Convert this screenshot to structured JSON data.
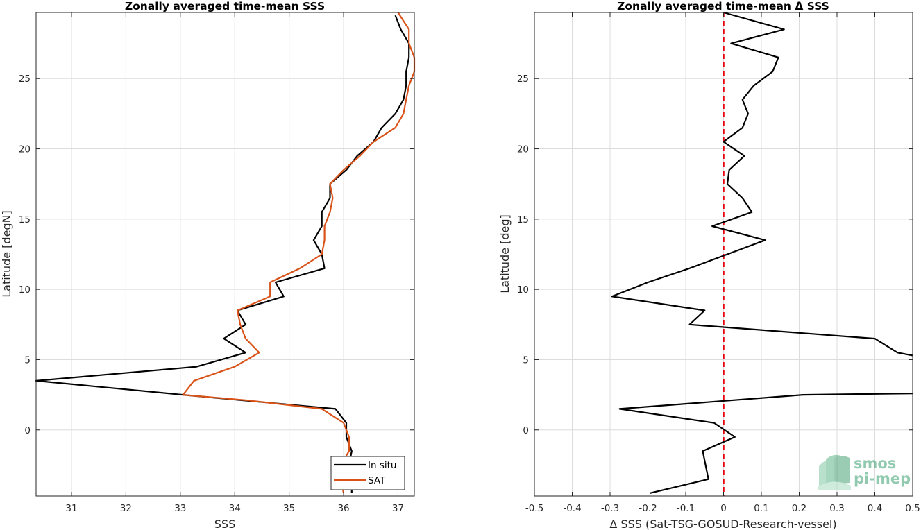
{
  "chart_data": [
    {
      "type": "line",
      "title": "Zonally averaged time-mean SSS",
      "xlabel": "SSS",
      "ylabel": "Latitude [degN]",
      "xlim": [
        30.35,
        37.3
      ],
      "ylim": [
        -4.7,
        29.7
      ],
      "xticks": [
        31,
        32,
        33,
        34,
        35,
        36,
        37
      ],
      "yticks": [
        0,
        5,
        10,
        15,
        20,
        25
      ],
      "grid": true,
      "legend_position": "bottom-right",
      "series": [
        {
          "name": "In situ",
          "color": "#000000",
          "points": [
            [
              36.15,
              -4.5
            ],
            [
              36.15,
              -3.5
            ],
            [
              36.1,
              -2.5
            ],
            [
              36.15,
              -1.5
            ],
            [
              36.05,
              -0.5
            ],
            [
              36.05,
              0.5
            ],
            [
              35.85,
              1.5
            ],
            [
              33.05,
              2.5
            ],
            [
              30.35,
              3.5
            ],
            [
              33.3,
              4.5
            ],
            [
              34.2,
              5.5
            ],
            [
              33.8,
              6.5
            ],
            [
              34.2,
              7.5
            ],
            [
              34.05,
              8.5
            ],
            [
              34.9,
              9.5
            ],
            [
              34.75,
              10.5
            ],
            [
              35.65,
              11.5
            ],
            [
              35.6,
              12.5
            ],
            [
              35.45,
              13.5
            ],
            [
              35.6,
              14.5
            ],
            [
              35.6,
              15.5
            ],
            [
              35.75,
              16.5
            ],
            [
              35.75,
              17.5
            ],
            [
              36.05,
              18.5
            ],
            [
              36.25,
              19.5
            ],
            [
              36.55,
              20.5
            ],
            [
              36.7,
              21.5
            ],
            [
              36.95,
              22.5
            ],
            [
              37.1,
              23.5
            ],
            [
              37.15,
              24.5
            ],
            [
              37.15,
              25.5
            ],
            [
              37.2,
              26.5
            ],
            [
              37.2,
              27.5
            ],
            [
              37.05,
              28.5
            ],
            [
              36.95,
              29.5
            ]
          ]
        },
        {
          "name": "SAT",
          "color": "#d95319",
          "points": [
            [
              36.0,
              -4.5
            ],
            [
              35.95,
              -3.5
            ],
            [
              35.95,
              -2.5
            ],
            [
              36.1,
              -1.5
            ],
            [
              36.1,
              -0.5
            ],
            [
              36.0,
              0.5
            ],
            [
              35.6,
              1.5
            ],
            [
              34.25,
              2.1
            ],
            [
              33.05,
              2.5
            ],
            [
              33.25,
              3.5
            ],
            [
              34.0,
              4.5
            ],
            [
              34.45,
              5.5
            ],
            [
              34.2,
              6.5
            ],
            [
              34.1,
              7.5
            ],
            [
              34.05,
              8.5
            ],
            [
              34.65,
              9.5
            ],
            [
              34.65,
              10.5
            ],
            [
              35.2,
              11.5
            ],
            [
              35.6,
              12.5
            ],
            [
              35.65,
              13.5
            ],
            [
              35.65,
              14.5
            ],
            [
              35.75,
              15.5
            ],
            [
              35.8,
              16.5
            ],
            [
              35.75,
              17.5
            ],
            [
              36.0,
              18.5
            ],
            [
              36.3,
              19.5
            ],
            [
              36.55,
              20.5
            ],
            [
              36.95,
              21.5
            ],
            [
              37.1,
              22.5
            ],
            [
              37.15,
              23.5
            ],
            [
              37.2,
              24.5
            ],
            [
              37.3,
              25.5
            ],
            [
              37.3,
              26.5
            ],
            [
              37.2,
              27.5
            ],
            [
              37.2,
              28.5
            ],
            [
              37.0,
              29.7
            ]
          ]
        }
      ]
    },
    {
      "type": "line",
      "title": "Zonally averaged time-mean Δ SSS",
      "xlabel": "Δ SSS (Sat-TSG-GOSUD-Research-vessel)",
      "ylabel": "Latitude [deg]",
      "xlim": [
        -0.5,
        0.5
      ],
      "ylim": [
        -4.7,
        29.7
      ],
      "xticks": [
        "-0.5",
        "-0.4",
        "-0.3",
        "-0.2",
        "-0.1",
        "0",
        "0.1",
        "0.2",
        "0.3",
        "0.4",
        "0.5"
      ],
      "xtick_values": [
        -0.5,
        -0.4,
        -0.3,
        -0.2,
        -0.1,
        0,
        0.1,
        0.2,
        0.3,
        0.4,
        0.5
      ],
      "yticks": [
        0,
        5,
        10,
        15,
        20,
        25
      ],
      "grid": true,
      "reference_line": {
        "x": 0,
        "color": "#e8000b",
        "style": "dashed"
      },
      "series": [
        {
          "color": "#000000",
          "points": [
            [
              -0.195,
              -4.5
            ],
            [
              -0.04,
              -3.5
            ],
            [
              -0.055,
              -1.5
            ],
            [
              0.03,
              -0.5
            ],
            [
              -0.025,
              0.5
            ],
            [
              -0.275,
              1.5
            ],
            [
              0.21,
              2.5
            ],
            [
              0.5,
              2.6
            ]
          ]
        },
        {
          "color": "#000000",
          "points": [
            [
              0.5,
              5.3
            ],
            [
              0.46,
              5.5
            ],
            [
              0.4,
              6.5
            ],
            [
              -0.09,
              7.5
            ],
            [
              -0.05,
              8.5
            ],
            [
              -0.295,
              9.5
            ],
            [
              -0.2,
              10.5
            ],
            [
              -0.09,
              11.5
            ],
            [
              0.01,
              12.5
            ],
            [
              0.11,
              13.5
            ],
            [
              -0.03,
              14.5
            ],
            [
              0.075,
              15.5
            ],
            [
              0.05,
              16.5
            ],
            [
              0.01,
              17.5
            ],
            [
              0.015,
              18.5
            ],
            [
              0.055,
              19.5
            ],
            [
              0.0,
              20.5
            ],
            [
              0.05,
              21.5
            ],
            [
              0.065,
              22.5
            ],
            [
              0.05,
              23.5
            ],
            [
              0.08,
              24.5
            ],
            [
              0.13,
              25.5
            ],
            [
              0.145,
              26.5
            ],
            [
              0.02,
              27.5
            ],
            [
              0.16,
              28.5
            ],
            [
              0.0,
              29.7
            ]
          ]
        }
      ]
    }
  ],
  "legend": {
    "items": [
      "In situ",
      "SAT"
    ]
  },
  "logo": {
    "line1": "smos",
    "line2": "pi-mep"
  }
}
